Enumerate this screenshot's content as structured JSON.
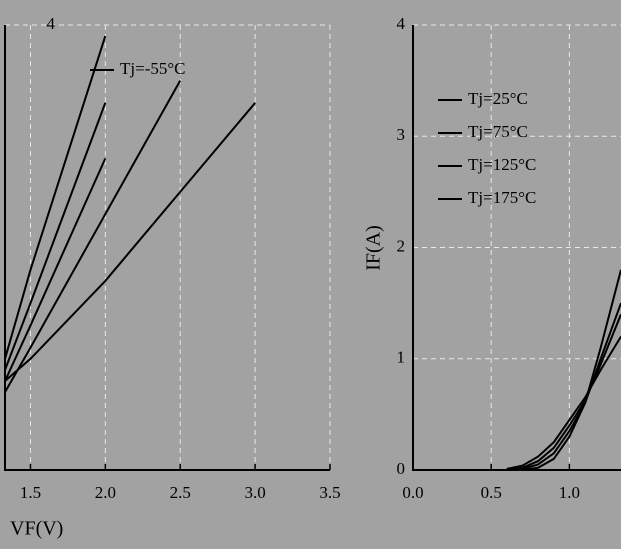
{
  "chart_data": [
    {
      "type": "line",
      "x_label": "VF(V)",
      "x": [
        1.33,
        1.5,
        2.0,
        2.5,
        3.0
      ],
      "xlim": [
        1.33,
        3.5
      ],
      "ylim": [
        0,
        4
      ],
      "xticks": [
        1.5,
        {
          "value": 2,
          "label": "2.0"
        },
        2.5,
        {
          "value": 3,
          "label": "3.0"
        },
        3.5
      ],
      "yticks": [
        4
      ],
      "grid": true,
      "series": [
        {
          "name": "Tj=-55°C",
          "color": "#000000",
          "values": [
            1.0,
            1.8,
            3.9,
            null,
            null
          ]
        },
        {
          "color": "#000000",
          "values": [
            0.9,
            1.5,
            3.3,
            null,
            null
          ]
        },
        {
          "color": "#000000",
          "values": [
            0.8,
            1.3,
            2.8,
            null,
            null
          ]
        },
        {
          "color": "#000000",
          "values": [
            0.7,
            1.1,
            2.3,
            3.5,
            null
          ]
        },
        {
          "color": "#000000",
          "values": [
            0.8,
            1.0,
            1.7,
            2.5,
            3.3
          ]
        }
      ]
    },
    {
      "type": "line",
      "y_label": "IF(A)",
      "x": [
        0.6,
        0.7,
        0.8,
        0.9,
        1.0,
        1.1,
        1.2,
        1.33
      ],
      "xlim": [
        0,
        1.33
      ],
      "ylim": [
        0,
        4
      ],
      "xticks": [
        {
          "value": 0,
          "label": "0.0"
        },
        0.5,
        {
          "value": 1,
          "label": "1.0"
        }
      ],
      "yticks": [
        0,
        1,
        2,
        3,
        4
      ],
      "grid": true,
      "series": [
        {
          "name": "Tj=25°C",
          "color": "#000000",
          "values": [
            0,
            0,
            0.02,
            0.1,
            0.3,
            0.6,
            1.1,
            1.8
          ]
        },
        {
          "name": "Tj=75°C",
          "color": "#000000",
          "values": [
            0,
            0.01,
            0.05,
            0.15,
            0.35,
            0.6,
            1.0,
            1.5
          ]
        },
        {
          "name": "Tj=125°C",
          "color": "#000000",
          "values": [
            0,
            0.02,
            0.08,
            0.2,
            0.4,
            0.62,
            0.95,
            1.4
          ]
        },
        {
          "name": "Tj=175°C",
          "color": "#000000",
          "values": [
            0.01,
            0.04,
            0.12,
            0.25,
            0.45,
            0.65,
            0.9,
            1.2
          ]
        }
      ]
    }
  ]
}
